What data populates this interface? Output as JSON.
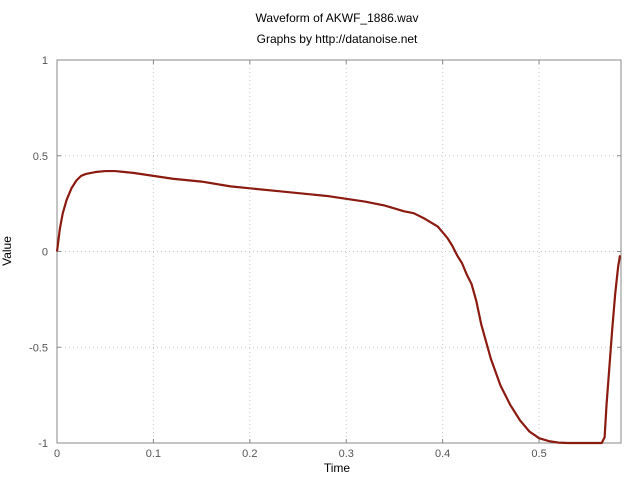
{
  "chart_data": {
    "type": "line",
    "title": "Waveform of AKWF_1886.wav",
    "subtitle": "Graphs by http://datanoise.net",
    "xlabel": "Time",
    "ylabel": "Value",
    "xlim": [
      0,
      0.585
    ],
    "ylim": [
      -1,
      1
    ],
    "x_ticks": [
      0,
      0.1,
      0.2,
      0.3,
      0.4,
      0.5
    ],
    "x_tick_labels": [
      "0",
      "0.1",
      "0.2",
      "0.3",
      "0.4",
      "0.5"
    ],
    "y_ticks": [
      1,
      0.5,
      0,
      -0.5,
      -1
    ],
    "y_tick_labels": [
      "1",
      "0.5",
      "0",
      "-0.5",
      "-1"
    ],
    "grid": true,
    "legend": "none",
    "series": [
      {
        "color": "#8b1a10",
        "x": [
          0,
          0.003,
          0.006,
          0.01,
          0.015,
          0.02,
          0.025,
          0.03,
          0.04,
          0.05,
          0.06,
          0.07,
          0.08,
          0.1,
          0.12,
          0.15,
          0.18,
          0.2,
          0.23,
          0.26,
          0.28,
          0.3,
          0.32,
          0.34,
          0.36,
          0.37,
          0.38,
          0.39,
          0.395,
          0.4,
          0.405,
          0.41,
          0.415,
          0.42,
          0.425,
          0.43,
          0.435,
          0.44,
          0.45,
          0.46,
          0.47,
          0.48,
          0.49,
          0.5,
          0.51,
          0.52,
          0.53,
          0.54,
          0.55,
          0.56,
          0.565,
          0.568,
          0.57,
          0.573,
          0.576,
          0.579,
          0.582,
          0.584
        ],
        "y": [
          0,
          0.12,
          0.2,
          0.27,
          0.33,
          0.37,
          0.395,
          0.405,
          0.415,
          0.42,
          0.42,
          0.415,
          0.41,
          0.395,
          0.38,
          0.365,
          0.34,
          0.33,
          0.315,
          0.3,
          0.29,
          0.275,
          0.26,
          0.24,
          0.21,
          0.2,
          0.175,
          0.145,
          0.13,
          0.1,
          0.07,
          0.03,
          -0.02,
          -0.06,
          -0.12,
          -0.17,
          -0.26,
          -0.38,
          -0.56,
          -0.7,
          -0.8,
          -0.88,
          -0.94,
          -0.975,
          -0.99,
          -0.998,
          -1.0,
          -1.0,
          -1.0,
          -1.0,
          -1.0,
          -0.97,
          -0.8,
          -0.6,
          -0.4,
          -0.22,
          -0.08,
          -0.02
        ]
      }
    ]
  }
}
